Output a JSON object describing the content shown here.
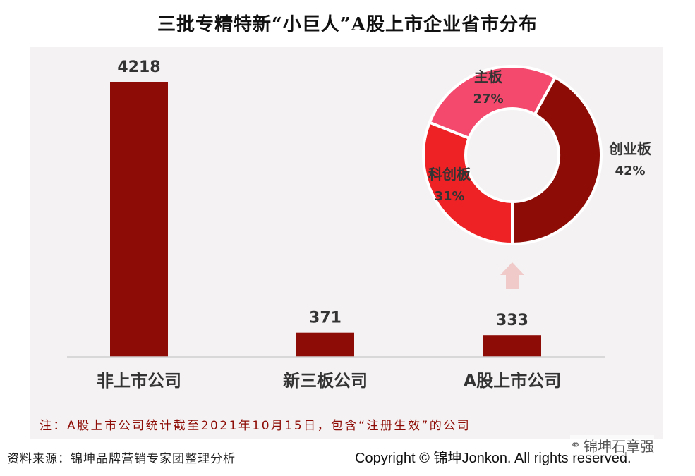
{
  "title": "三批专精特新“小巨人”A股上市企业省市分布",
  "chart_data": [
    {
      "type": "bar",
      "categories": [
        "非上市公司",
        "新三板公司",
        "A股上市公司"
      ],
      "values": [
        4218,
        371,
        333
      ],
      "ylim": [
        0,
        4218
      ],
      "grid": false,
      "colors": {
        "bar": "#8e0c06"
      }
    },
    {
      "type": "pie",
      "style": "donut",
      "labels": [
        "创业板",
        "科创板",
        "主板"
      ],
      "values": [
        42,
        31,
        27
      ],
      "value_labels": [
        "42%",
        "31%",
        "27%"
      ],
      "colors": [
        "#8e0c06",
        "#ee2225",
        "#f4486d"
      ]
    }
  ],
  "note": "注：A股上市公司统计截至2021年10月15日，包含“注册生效”的公司",
  "source": "资料来源：锦坤品牌营销专家团整理分析",
  "copyright": "Copyright © 锦坤Jonkon. All rights reserved.",
  "brand": {
    "icon": "wechat-icon",
    "text": "锦坤石章强"
  },
  "colors": {
    "panel": "#f4f2f2",
    "arrow": "#f0c9c9",
    "note_text": "#8e0c06"
  }
}
